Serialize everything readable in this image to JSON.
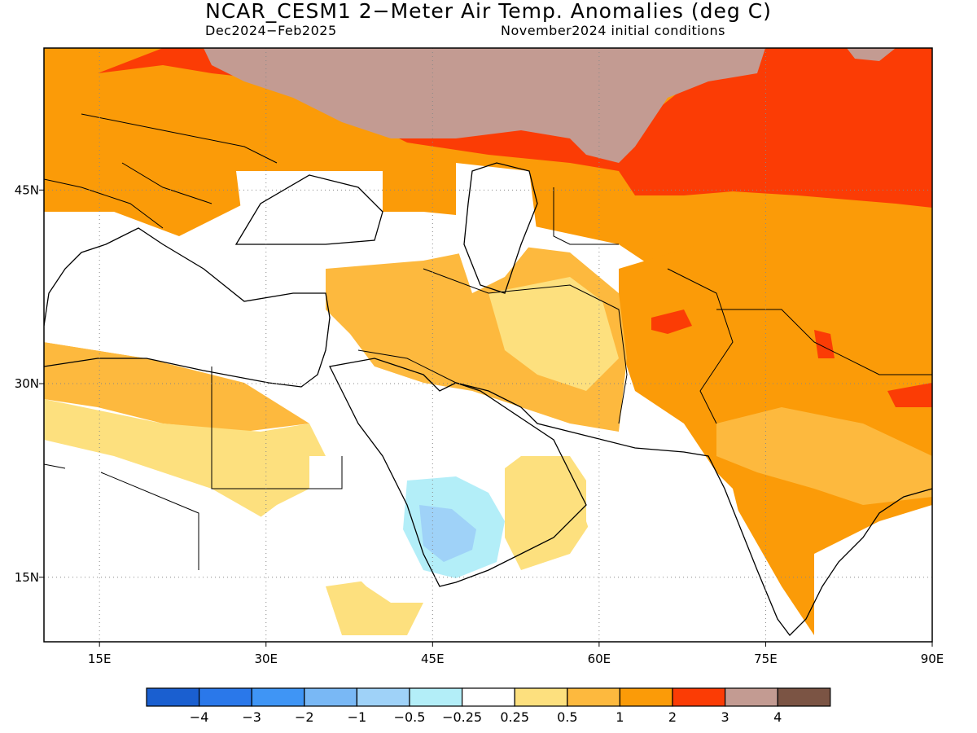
{
  "title": "NCAR_CESM1 2−Meter Air Temp. Anomalies (deg C)",
  "subtitle_period": "Dec2024−Feb2025",
  "subtitle_ic": "November2024 initial conditions",
  "axes": {
    "x_ticks": [
      "15E",
      "30E",
      "45E",
      "60E",
      "75E",
      "90E"
    ],
    "y_ticks": [
      "45N",
      "30N",
      "15N"
    ],
    "x_range": [
      10,
      90
    ],
    "y_range": [
      10,
      56
    ],
    "gridlines": "dotted"
  },
  "colorbar": {
    "colors": [
      "#1a5fd0",
      "#2a78ea",
      "#3f95f5",
      "#79b8f5",
      "#9fd2f8",
      "#b3eef8",
      "#ffffff",
      "#fde07e",
      "#fdb93e",
      "#fb9b08",
      "#fb3c05",
      "#c39b92",
      "#7b5444"
    ],
    "labels": [
      "−4",
      "−3",
      "−2",
      "−1",
      "−0.5",
      "−0.25",
      "0.25",
      "0.5",
      "1",
      "2",
      "3",
      "4"
    ]
  }
}
